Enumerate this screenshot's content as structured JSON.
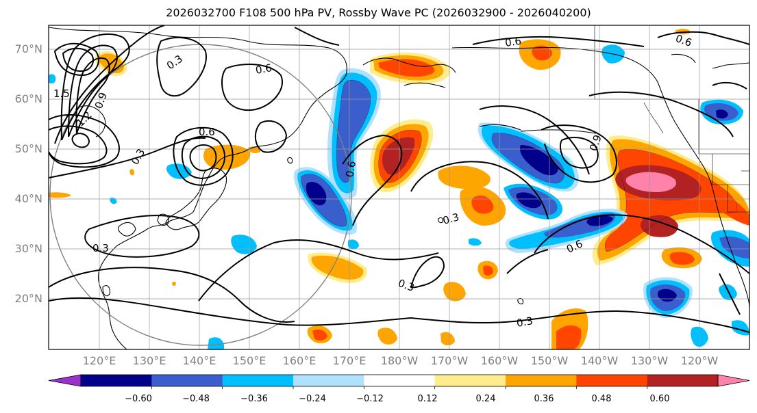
{
  "title": "2026032700 F108 500 hPa PV, Rossby Wave PC (2026032900 - 2026040200)",
  "lat_labels": [
    "70°N",
    "60°N",
    "50°N",
    "40°N",
    "30°N",
    "20°N"
  ],
  "lon_labels": [
    "120°E",
    "130°E",
    "140°E",
    "150°E",
    "160°E",
    "170°E",
    "180°W",
    "170°W",
    "160°W",
    "150°W",
    "140°W",
    "130°W",
    "120°W"
  ],
  "contour_labels": [
    "0.3",
    "0.6",
    "0.9",
    "1.5",
    "1.2",
    "0.6",
    "0.3",
    "0.3",
    "0.6",
    "0.3",
    "0.6",
    "0.9",
    "0.6",
    "0.3",
    "0.6",
    "0.3"
  ],
  "colorbar": {
    "ticks": [
      "−0.60",
      "−0.48",
      "−0.36",
      "−0.24",
      "−0.12",
      "0.12",
      "0.24",
      "0.36",
      "0.48",
      "0.60"
    ],
    "colors": [
      "#9932cc",
      "#00008b",
      "#3a5fcd",
      "#00bfff",
      "#b0e2ff",
      "#ffffff",
      "#ffec8b",
      "#ffa500",
      "#ff4500",
      "#b22222",
      "#ff82ab"
    ]
  },
  "colors": {
    "pos_weak": "#ffec8b",
    "pos_mid": "#ffa500",
    "pos_strong": "#ff4500",
    "pos_vstrong": "#b22222",
    "pos_max": "#ff82ab",
    "neg_weak": "#b0e2ff",
    "neg_mid": "#00bfff",
    "neg_strong": "#3a5fcd",
    "neg_vstrong": "#00008b",
    "neg_max": "#9932cc"
  }
}
